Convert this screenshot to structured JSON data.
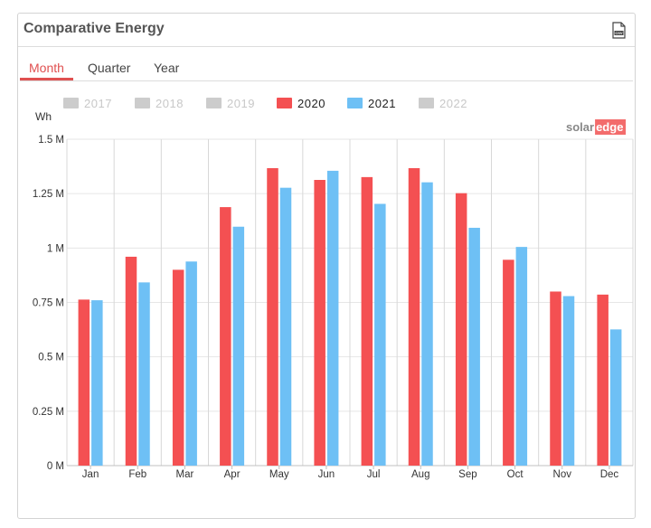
{
  "panel": {
    "title": "Comparative Energy",
    "csv_icon": "csv-download-icon"
  },
  "tabs": [
    {
      "label": "Month",
      "active": true
    },
    {
      "label": "Quarter",
      "active": false
    },
    {
      "label": "Year",
      "active": false
    }
  ],
  "brand": {
    "part1": "solar",
    "part2": "edge",
    "color1": "#888888",
    "color2_bg": "#f36c6c"
  },
  "chart_data": {
    "type": "bar",
    "ylabel": "Wh",
    "ylim": [
      0,
      1500000
    ],
    "yticks": [
      {
        "value": 0,
        "label": "0 M"
      },
      {
        "value": 250000,
        "label": "0.25 M"
      },
      {
        "value": 500000,
        "label": "0.5 M"
      },
      {
        "value": 750000,
        "label": "0.75 M"
      },
      {
        "value": 1000000,
        "label": "1 M"
      },
      {
        "value": 1250000,
        "label": "1.25 M"
      },
      {
        "value": 1500000,
        "label": "1.5 M"
      }
    ],
    "categories": [
      "Jan",
      "Feb",
      "Mar",
      "Apr",
      "May",
      "Jun",
      "Jul",
      "Aug",
      "Sep",
      "Oct",
      "Nov",
      "Dec"
    ],
    "legend": [
      {
        "name": "2017",
        "active": false,
        "color": "#cccccc"
      },
      {
        "name": "2018",
        "active": false,
        "color": "#cccccc"
      },
      {
        "name": "2019",
        "active": false,
        "color": "#cccccc"
      },
      {
        "name": "2020",
        "active": true,
        "color": "#f45052"
      },
      {
        "name": "2021",
        "active": true,
        "color": "#6ec0f5"
      },
      {
        "name": "2022",
        "active": false,
        "color": "#cccccc"
      }
    ],
    "series": [
      {
        "name": "2020",
        "color": "#f45052",
        "values": [
          763000,
          960000,
          900000,
          1188000,
          1367000,
          1313000,
          1326000,
          1367000,
          1252000,
          946000,
          800000,
          786000
        ]
      },
      {
        "name": "2021",
        "color": "#6ec0f5",
        "values": [
          760000,
          842000,
          938000,
          1098000,
          1277000,
          1355000,
          1203000,
          1302000,
          1093000,
          1005000,
          779000,
          626000
        ]
      }
    ],
    "grid": true
  }
}
